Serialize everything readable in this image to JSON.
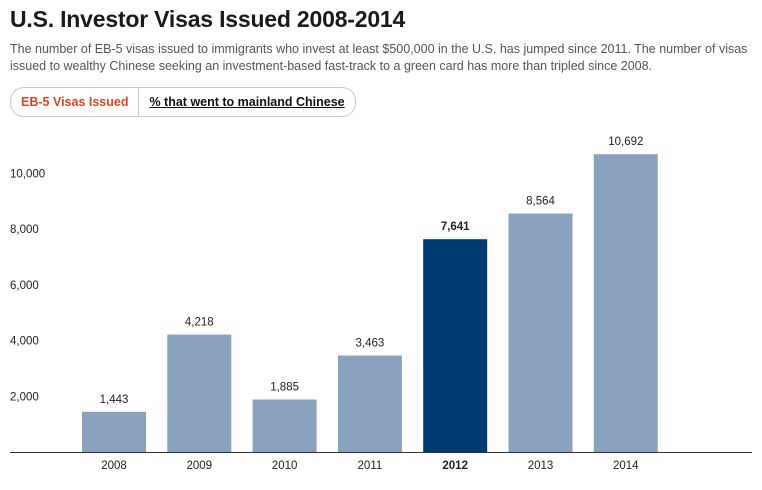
{
  "header": {
    "title": "U.S. Investor Visas Issued 2008-2014",
    "subtitle": "The number of EB-5 visas issued to immigrants who invest at least $500,000 in the U.S. has jumped since 2011. The number of visas issued to wealthy Chinese seeking an investment-based fast-track to a green card has more than tripled since 2008."
  },
  "tabs": [
    {
      "label": "EB-5 Visas Issued",
      "active": true
    },
    {
      "label": "% that went to mainland Chinese",
      "active": false
    }
  ],
  "colors": {
    "bar": "#8aa2be",
    "bar_highlight": "#003a70",
    "tab_active": "#d9481e"
  },
  "chart_data": {
    "type": "bar",
    "title": "U.S. Investor Visas Issued 2008-2014",
    "xlabel": "",
    "ylabel": "",
    "categories": [
      "2008",
      "2009",
      "2010",
      "2011",
      "2012",
      "2013",
      "2014"
    ],
    "values": [
      1443,
      4218,
      1885,
      3463,
      7641,
      8564,
      10692
    ],
    "value_labels": [
      "1,443",
      "4,218",
      "1,885",
      "3,463",
      "7,641",
      "8,564",
      "10,692"
    ],
    "highlight_category": "2012",
    "yticks": [
      2000,
      4000,
      6000,
      8000,
      10000
    ],
    "ytick_labels": [
      "2,000",
      "4,000",
      "6,000",
      "8,000",
      "10,000"
    ],
    "ylim": [
      0,
      11000
    ],
    "grid": false
  }
}
